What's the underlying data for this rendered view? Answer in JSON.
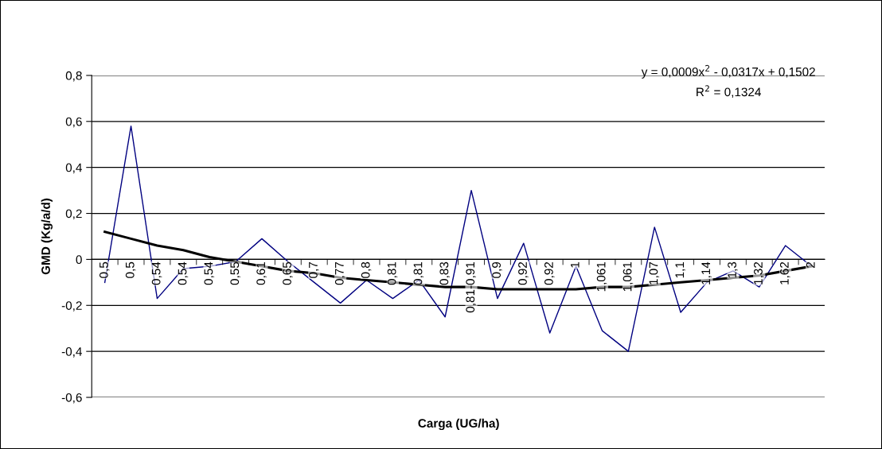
{
  "chart_data": {
    "type": "line",
    "xlabel": "Carga (UG/ha)",
    "ylabel": "GMD (Kg/a/d)",
    "categories": [
      "0,5",
      "0,5",
      "0,54",
      "0,54",
      "0,54",
      "0,55",
      "0,61",
      "0,65",
      "0,7",
      "0,77",
      "0,8",
      "0,81",
      "0,81",
      "0,83",
      "0,81-0,91",
      "0,9",
      "0,92",
      "0,92",
      "1",
      "1,061",
      "1,061",
      "1,07",
      "1,1",
      "1,14",
      "1,3",
      "1,32",
      "1,62",
      "2"
    ],
    "series": [
      {
        "color": "#000080",
        "values": [
          -0.1,
          0.58,
          -0.17,
          -0.04,
          -0.03,
          -0.01,
          0.09,
          -0.01,
          -0.1,
          -0.19,
          -0.09,
          -0.17,
          -0.09,
          -0.25,
          0.3,
          -0.17,
          0.07,
          -0.32,
          -0.03,
          -0.31,
          -0.4,
          0.14,
          -0.23,
          -0.1,
          -0.05,
          -0.12,
          0.06,
          -0.03
        ]
      },
      {
        "color": "#000000",
        "values": [
          0.12,
          0.09,
          0.06,
          0.04,
          0.01,
          -0.01,
          -0.03,
          -0.05,
          -0.06,
          -0.08,
          -0.09,
          -0.1,
          -0.11,
          -0.12,
          -0.12,
          -0.13,
          -0.13,
          -0.13,
          -0.13,
          -0.12,
          -0.12,
          -0.11,
          -0.1,
          -0.09,
          -0.08,
          -0.07,
          -0.05,
          -0.03
        ]
      }
    ],
    "ylim": [
      -0.6,
      0.8
    ],
    "yticks": [
      {
        "value": -0.6,
        "label": "-0,6"
      },
      {
        "value": -0.4,
        "label": "-0,4"
      },
      {
        "value": -0.2,
        "label": "-0,2"
      },
      {
        "value": 0,
        "label": "0"
      },
      {
        "value": 0.2,
        "label": "0,2"
      },
      {
        "value": 0.4,
        "label": "0,4"
      },
      {
        "value": 0.6,
        "label": "0,6"
      },
      {
        "value": 0.8,
        "label": "0,8"
      }
    ],
    "grid": "y",
    "marker": "none",
    "line_style": "solid",
    "legend": false,
    "annotations": [
      "y = 0,0009x$^{2}$ - 0,0317x + 0,1502",
      "R$^{2}$ = 0,1324"
    ]
  }
}
